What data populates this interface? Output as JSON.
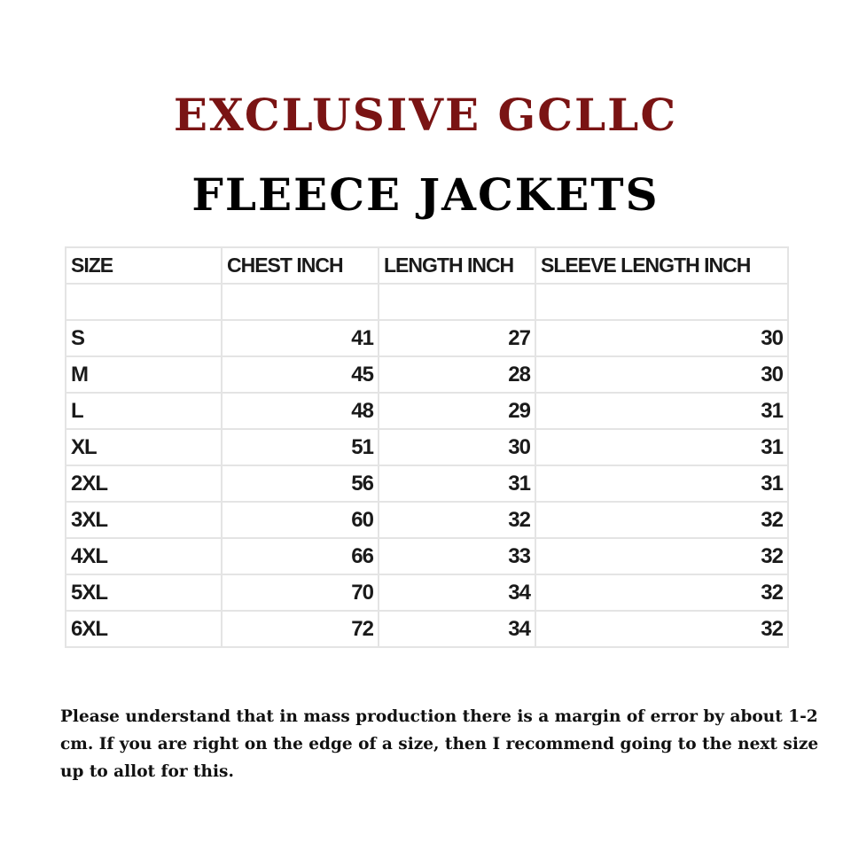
{
  "title": "EXCLUSIVE GCLLC",
  "subtitle": "FLEECE JACKETS",
  "colors": {
    "title": "#7a1414",
    "subtitle": "#000000",
    "grid": "#e4e4e4"
  },
  "table": {
    "headers": [
      "SIZE",
      "CHEST INCH",
      "LENGTH INCH",
      "SLEEVE LENGTH INCH"
    ],
    "rows": [
      [
        "S",
        "41",
        "27",
        "30"
      ],
      [
        "M",
        "45",
        "28",
        "30"
      ],
      [
        "L",
        "48",
        "29",
        "31"
      ],
      [
        "XL",
        "51",
        "30",
        "31"
      ],
      [
        "2XL",
        "56",
        "31",
        "31"
      ],
      [
        "3XL",
        "60",
        "32",
        "32"
      ],
      [
        "4XL",
        "66",
        "33",
        "32"
      ],
      [
        "5XL",
        "70",
        "34",
        "32"
      ],
      [
        "6XL",
        "72",
        "34",
        "32"
      ]
    ]
  },
  "note": "Please understand that in mass production there is a margin of error by about 1-2 cm. If you are right on the edge of a size, then I recommend going to the next size up to allot for this."
}
